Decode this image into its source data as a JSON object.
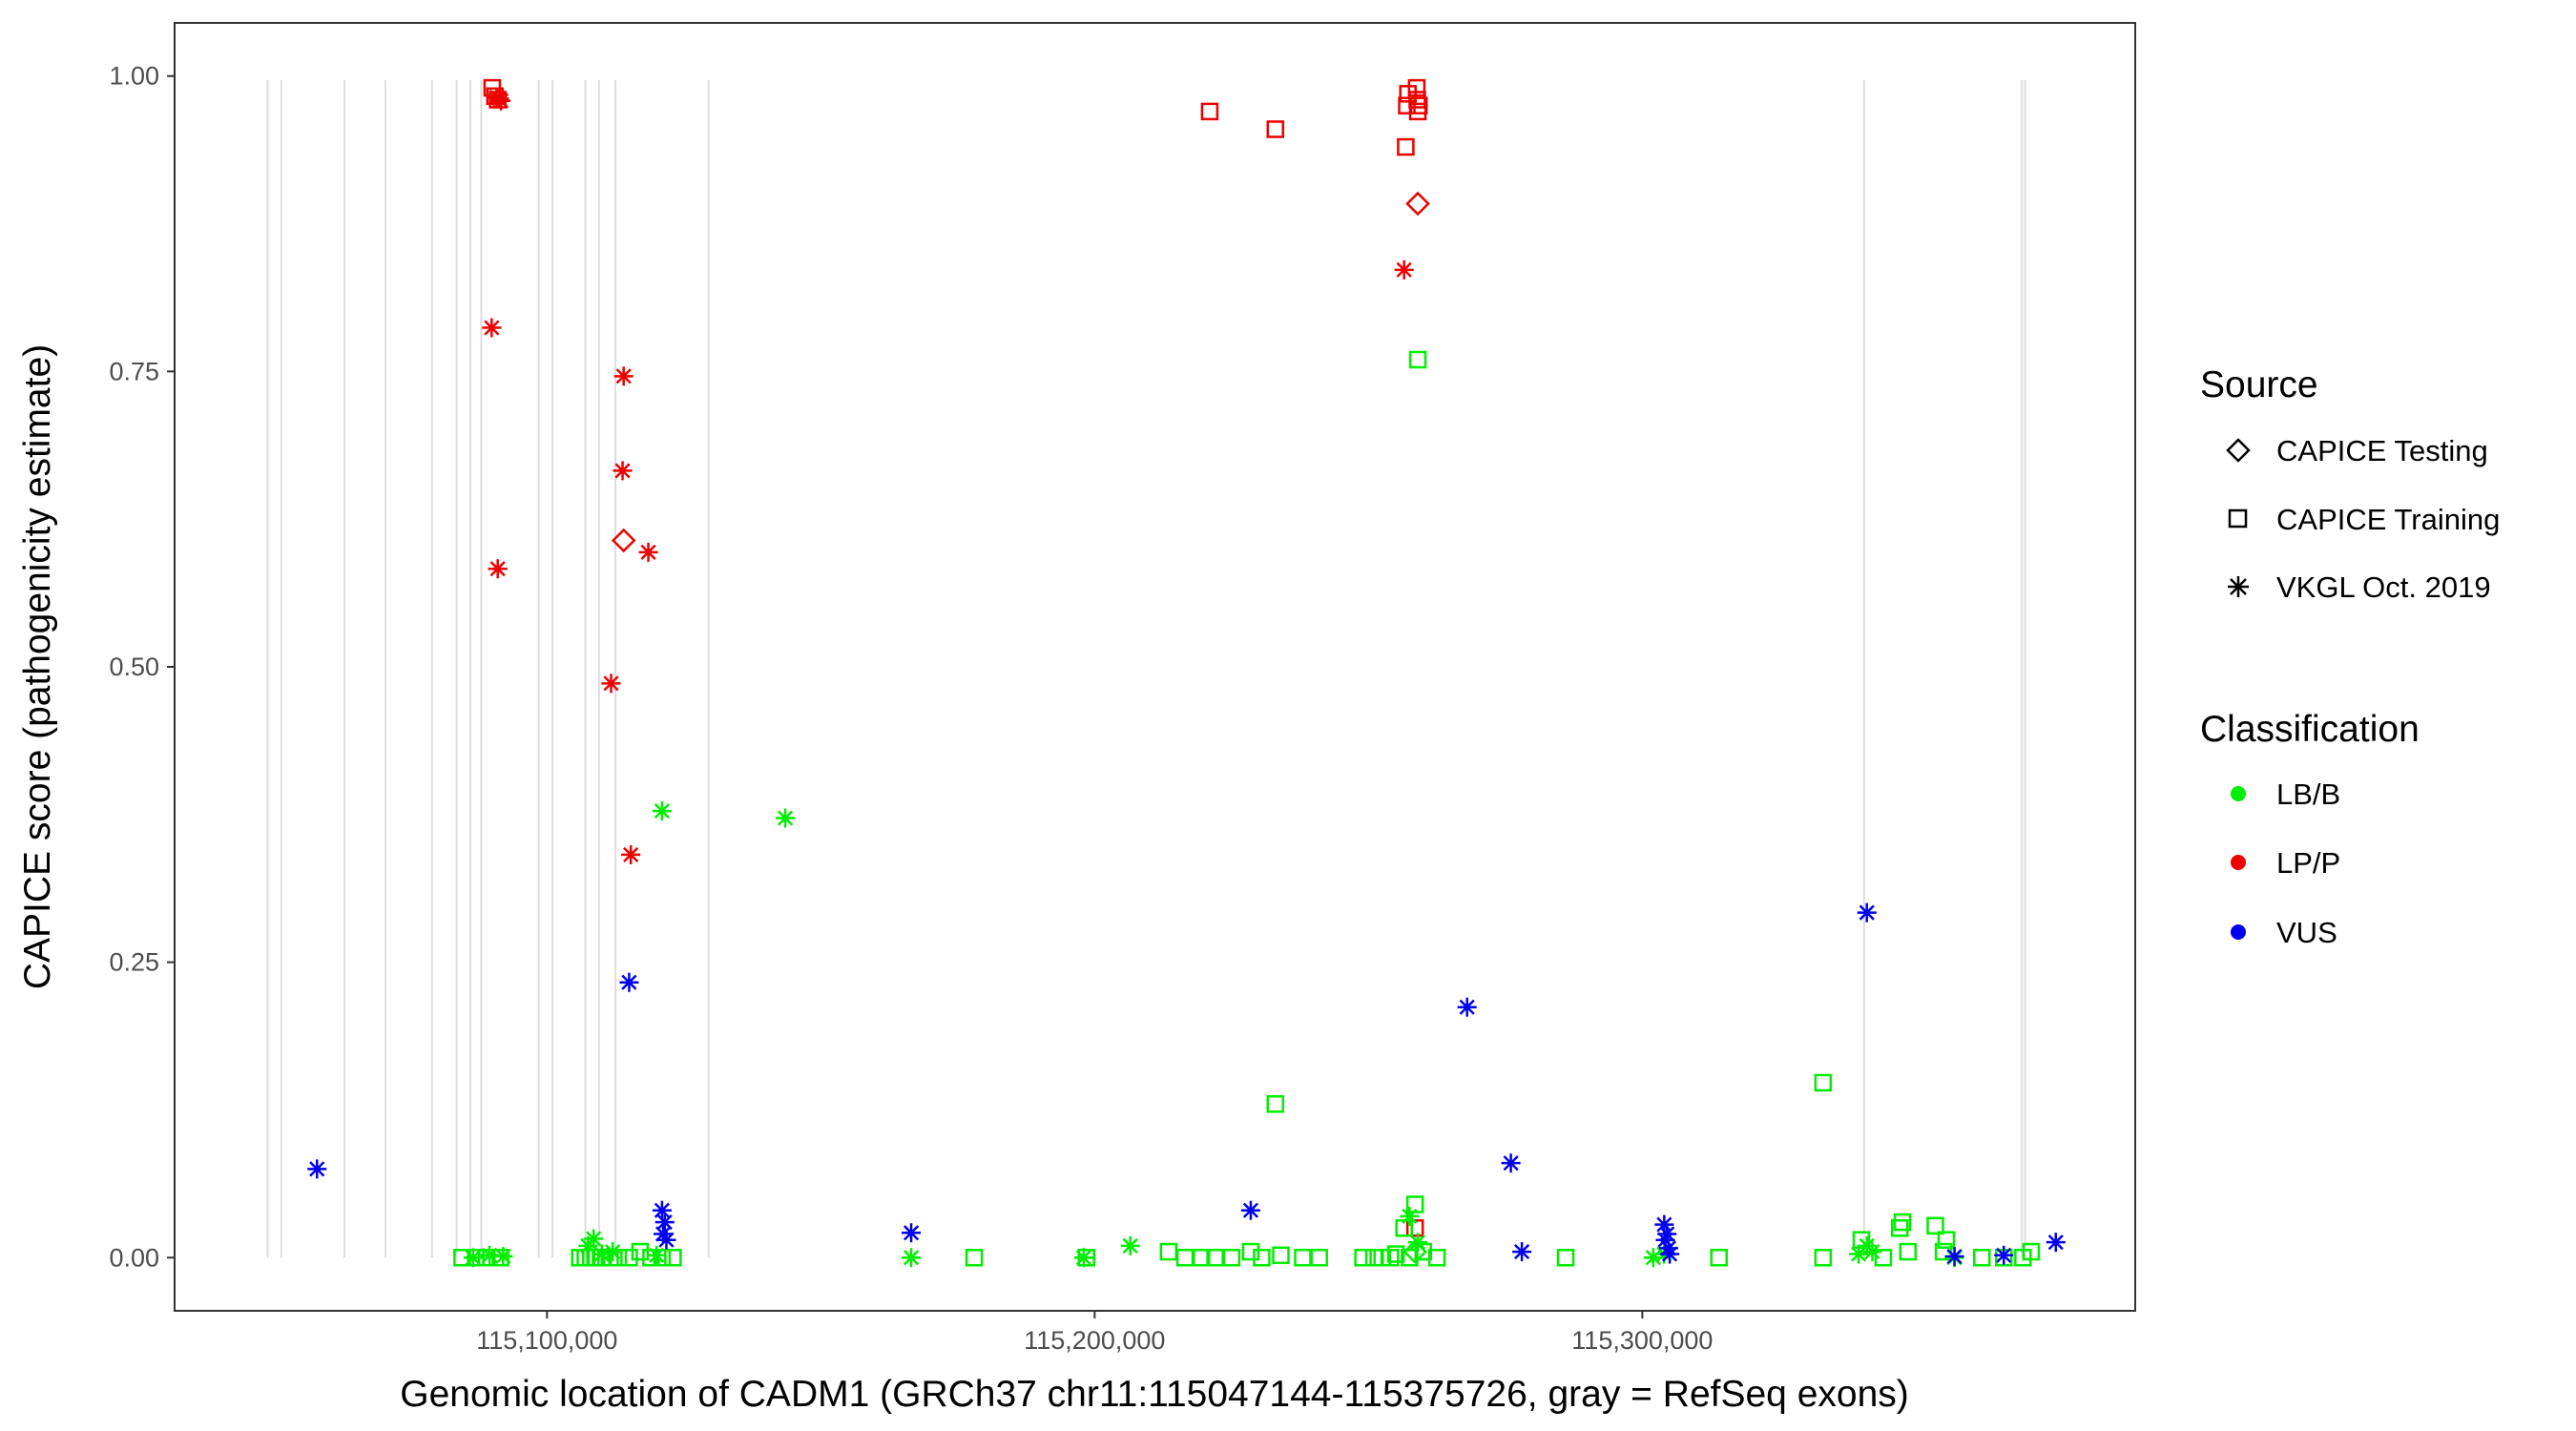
{
  "chart_data": {
    "type": "scatter",
    "xlabel": "Genomic location of CADM1 (GRCh37 chr11:115047144-115375726, gray = RefSeq exons)",
    "ylabel": "CAPICE score (pathogenicity estimate)",
    "xlim": [
      115032000,
      115390000
    ],
    "ylim": [
      -0.045,
      1.045
    ],
    "x_ticks": [
      115100000,
      115200000,
      115300000
    ],
    "x_tick_labels": [
      "115,100,000",
      "115,200,000",
      "115,300,000"
    ],
    "y_ticks": [
      0,
      0.25,
      0.5,
      0.75,
      1.0
    ],
    "y_tick_labels": [
      "0.00",
      "0.25",
      "0.50",
      "0.75",
      "1.00"
    ],
    "grid": false,
    "legend_position": "right",
    "exon_positions": [
      115049000,
      115051500,
      115063000,
      115070500,
      115079000,
      115083500,
      115086000,
      115088000,
      115098500,
      115101000,
      115107000,
      115109500,
      115112500,
      115129500,
      115340500,
      115369300,
      115369900
    ],
    "exon_color": "#dddddd",
    "colors": {
      "LB/B": "#00ee00",
      "LP/P": "#ee0000",
      "VUS": "#0000ee"
    },
    "legend": {
      "source_title": "Source",
      "source_items": [
        {
          "label": "CAPICE Testing",
          "shape": "diamond"
        },
        {
          "label": "CAPICE Training",
          "shape": "square"
        },
        {
          "label": "VKGL Oct. 2019",
          "shape": "asterisk"
        }
      ],
      "class_title": "Classification",
      "class_items": [
        {
          "label": "LB/B"
        },
        {
          "label": "LP/P"
        },
        {
          "label": "VUS"
        }
      ]
    },
    "series": [
      {
        "name": "LP/P",
        "source": "CAPICE Training",
        "shape": "square",
        "points": [
          [
            115090000,
            0.99
          ],
          [
            115090500,
            0.983
          ],
          [
            115091000,
            0.98
          ],
          [
            115221000,
            0.97
          ],
          [
            115233000,
            0.955
          ],
          [
            115256800,
            0.94
          ],
          [
            115257000,
            0.975
          ],
          [
            115257200,
            0.985
          ],
          [
            115258800,
            0.99
          ],
          [
            115258900,
            0.98
          ],
          [
            115259000,
            0.97
          ],
          [
            115259200,
            0.975
          ],
          [
            115258500,
            0.025
          ]
        ]
      },
      {
        "name": "LP/P",
        "source": "CAPICE Testing",
        "shape": "diamond",
        "points": [
          [
            115259000,
            0.892
          ],
          [
            115114000,
            0.607
          ]
        ]
      },
      {
        "name": "LP/P",
        "source": "VKGL Oct. 2019",
        "shape": "asterisk",
        "points": [
          [
            115090800,
            0.982
          ],
          [
            115091600,
            0.979
          ],
          [
            115091300,
            0.981
          ],
          [
            115089900,
            0.787
          ],
          [
            115091000,
            0.583
          ],
          [
            115114000,
            0.746
          ],
          [
            115113800,
            0.666
          ],
          [
            115118500,
            0.597
          ],
          [
            115111700,
            0.486
          ],
          [
            115115300,
            0.341
          ],
          [
            115256500,
            0.836
          ]
        ]
      },
      {
        "name": "LB/B",
        "source": "CAPICE Testing",
        "shape": "diamond",
        "points": [
          [
            115258500,
            0.005
          ]
        ]
      },
      {
        "name": "LB/B",
        "source": "CAPICE Training",
        "shape": "square",
        "points": [
          [
            115084500,
            0
          ],
          [
            115087000,
            0
          ],
          [
            115089000,
            0
          ],
          [
            115091500,
            0
          ],
          [
            115106000,
            0
          ],
          [
            115107000,
            0
          ],
          [
            115108000,
            0
          ],
          [
            115109000,
            0
          ],
          [
            115110000,
            0
          ],
          [
            115111500,
            0
          ],
          [
            115113000,
            0
          ],
          [
            115115000,
            0
          ],
          [
            115117000,
            0.005
          ],
          [
            115119000,
            0
          ],
          [
            115121000,
            0
          ],
          [
            115123000,
            0
          ],
          [
            115178000,
            0
          ],
          [
            115198500,
            0
          ],
          [
            115213500,
            0.005
          ],
          [
            115216500,
            0
          ],
          [
            115219500,
            0
          ],
          [
            115222000,
            0
          ],
          [
            115225000,
            0
          ],
          [
            115228500,
            0.005
          ],
          [
            115230500,
            0
          ],
          [
            115234000,
            0.002
          ],
          [
            115238000,
            0
          ],
          [
            115241000,
            0
          ],
          [
            115249000,
            0
          ],
          [
            115251000,
            0
          ],
          [
            115252500,
            0
          ],
          [
            115254000,
            0
          ],
          [
            115255000,
            0.003
          ],
          [
            115256500,
            0.025
          ],
          [
            115257500,
            0
          ],
          [
            115258500,
            0.045
          ],
          [
            115260000,
            0.005
          ],
          [
            115262500,
            0
          ],
          [
            115233000,
            0.13
          ],
          [
            115259000,
            0.76
          ],
          [
            115286000,
            0
          ],
          [
            115314000,
            0
          ],
          [
            115333000,
            0
          ],
          [
            115333000,
            0.148
          ],
          [
            115340000,
            0.015
          ],
          [
            115344000,
            0
          ],
          [
            115347000,
            0.025
          ],
          [
            115347500,
            0.03
          ],
          [
            115348500,
            0.005
          ],
          [
            115353500,
            0.027
          ],
          [
            115355000,
            0.005
          ],
          [
            115355500,
            0.015
          ],
          [
            115362000,
            0
          ],
          [
            115366000,
            0
          ],
          [
            115369500,
            0
          ],
          [
            115371000,
            0.005
          ]
        ]
      },
      {
        "name": "LB/B",
        "source": "VKGL Oct. 2019",
        "shape": "asterisk",
        "points": [
          [
            115086500,
            0
          ],
          [
            115089500,
            0.002
          ],
          [
            115092000,
            0.001
          ],
          [
            115107500,
            0.01
          ],
          [
            115108500,
            0.016
          ],
          [
            115110000,
            0.003
          ],
          [
            115112000,
            0.005
          ],
          [
            115120000,
            0.002
          ],
          [
            115121000,
            0.378
          ],
          [
            115143500,
            0.372
          ],
          [
            115166500,
            0
          ],
          [
            115198000,
            0
          ],
          [
            115206500,
            0.01
          ],
          [
            115257500,
            0.035
          ],
          [
            115259000,
            0.013
          ],
          [
            115302000,
            0
          ],
          [
            115304000,
            0.003
          ],
          [
            115339500,
            0.003
          ],
          [
            115341000,
            0.01
          ],
          [
            115342000,
            0.005
          ],
          [
            115357000,
            0
          ]
        ]
      },
      {
        "name": "VUS",
        "source": "VKGL Oct. 2019",
        "shape": "asterisk",
        "points": [
          [
            115058000,
            0.075
          ],
          [
            115115000,
            0.233
          ],
          [
            115121000,
            0.04
          ],
          [
            115121500,
            0.03
          ],
          [
            115121200,
            0.02
          ],
          [
            115121800,
            0.015
          ],
          [
            115166500,
            0.021
          ],
          [
            115228500,
            0.04
          ],
          [
            115268000,
            0.212
          ],
          [
            115276000,
            0.08
          ],
          [
            115278000,
            0.005
          ],
          [
            115304000,
            0.028
          ],
          [
            115304500,
            0.02
          ],
          [
            115304200,
            0.015
          ],
          [
            115304800,
            0.008
          ],
          [
            115305000,
            0.003
          ],
          [
            115341000,
            0.292
          ],
          [
            115357000,
            0.001
          ],
          [
            115366000,
            0.002
          ],
          [
            115375500,
            0.013
          ]
        ]
      }
    ]
  }
}
